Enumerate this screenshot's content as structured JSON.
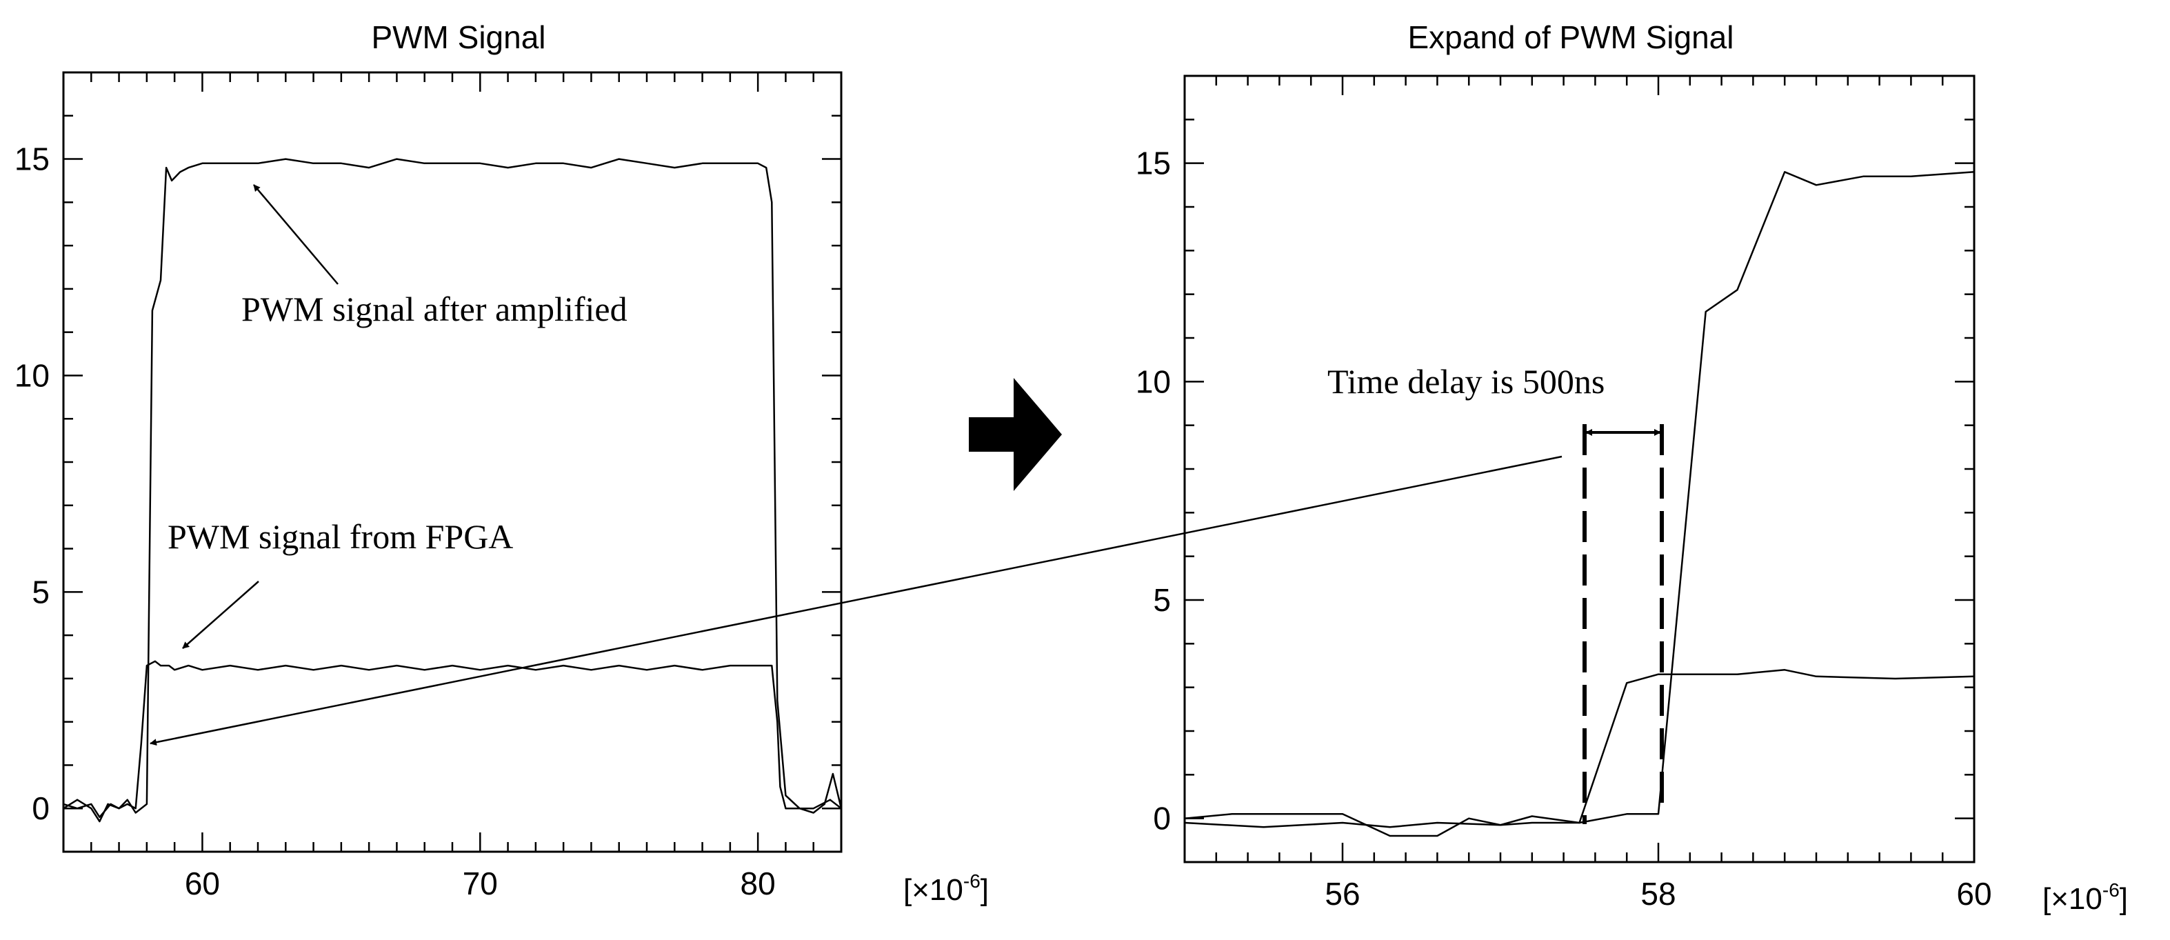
{
  "chart_data": [
    {
      "type": "line",
      "title": "PWM Signal",
      "x_unit_label": "[×10",
      "x_unit_exp": "-6",
      "x_unit_close": "]",
      "xlim": [
        55,
        83
      ],
      "ylim": [
        -1,
        17
      ],
      "xticks": [
        60,
        70,
        80
      ],
      "yticks": [
        0,
        5,
        10,
        15
      ],
      "grid": false,
      "series": [
        {
          "x": [
            55,
            55.5,
            56,
            56.3,
            56.7,
            57,
            57.3,
            57.6,
            57.8,
            58.0,
            58.3,
            58.5,
            58.8,
            59.0,
            59.5,
            60,
            61,
            62,
            63,
            64,
            65,
            66,
            67,
            68,
            69,
            70,
            71,
            72,
            73,
            74,
            75,
            76,
            77,
            78,
            79,
            80,
            80.3,
            80.5,
            80.7,
            80.8,
            81,
            82,
            82.6,
            83
          ],
          "y": [
            0.1,
            0.0,
            0.1,
            -0.2,
            0.1,
            0.0,
            0.1,
            0.0,
            1.5,
            3.3,
            3.4,
            3.3,
            3.3,
            3.2,
            3.3,
            3.2,
            3.3,
            3.2,
            3.3,
            3.2,
            3.3,
            3.2,
            3.3,
            3.2,
            3.3,
            3.2,
            3.3,
            3.2,
            3.3,
            3.2,
            3.3,
            3.2,
            3.3,
            3.2,
            3.3,
            3.3,
            3.3,
            3.3,
            2.0,
            0.5,
            0.0,
            0.0,
            0.2,
            0.0
          ]
        },
        {
          "x": [
            55,
            55.5,
            56,
            56.3,
            56.6,
            57,
            57.3,
            57.6,
            58.0,
            58.2,
            58.5,
            58.7,
            58.9,
            59.2,
            59.5,
            60,
            61,
            62,
            63,
            64,
            65,
            66,
            67,
            68,
            69,
            70,
            71,
            72,
            73,
            74,
            75,
            76,
            77,
            78,
            79,
            80,
            80.3,
            80.5,
            80.7,
            81,
            81.5,
            82,
            82.4,
            82.7,
            83
          ],
          "y": [
            0.0,
            0.2,
            0.0,
            -0.3,
            0.1,
            0.0,
            0.2,
            -0.1,
            0.1,
            11.5,
            12.2,
            14.8,
            14.5,
            14.7,
            14.8,
            14.9,
            14.9,
            14.9,
            15.0,
            14.9,
            14.9,
            14.8,
            15.0,
            14.9,
            14.9,
            14.9,
            14.8,
            14.9,
            14.9,
            14.8,
            15.0,
            14.9,
            14.8,
            14.9,
            14.9,
            14.9,
            14.8,
            14.0,
            2.5,
            0.3,
            0.0,
            -0.1,
            0.1,
            0.8,
            0.0
          ]
        }
      ],
      "annotations": [
        "PWM signal after amplified",
        "PWM signal from FPGA"
      ]
    },
    {
      "type": "line",
      "title": "Expand of PWM Signal",
      "x_unit_label": "[×10",
      "x_unit_exp": "-6",
      "x_unit_close": "]",
      "xlim": [
        55,
        60
      ],
      "ylim": [
        -1,
        17
      ],
      "xticks": [
        56,
        58,
        60
      ],
      "yticks": [
        0,
        5,
        10,
        15
      ],
      "grid": false,
      "series": [
        {
          "x": [
            55,
            55.5,
            56,
            56.3,
            56.6,
            57,
            57.2,
            57.5,
            57.8,
            58.0,
            58.5,
            58.8,
            59.0,
            59.5,
            60
          ],
          "y": [
            -0.1,
            -0.2,
            -0.1,
            -0.2,
            -0.1,
            -0.15,
            -0.1,
            -0.1,
            3.1,
            3.3,
            3.3,
            3.4,
            3.25,
            3.2,
            3.25
          ]
        },
        {
          "x": [
            55,
            55.3,
            55.6,
            56,
            56.3,
            56.6,
            56.8,
            57,
            57.2,
            57.5,
            57.8,
            58.0,
            58.3,
            58.5,
            58.8,
            59.0,
            59.3,
            59.6,
            60
          ],
          "y": [
            0.0,
            0.1,
            0.1,
            0.1,
            -0.4,
            -0.4,
            0.0,
            -0.15,
            0.05,
            -0.1,
            0.1,
            0.1,
            11.6,
            12.1,
            14.8,
            14.5,
            14.7,
            14.7,
            14.8
          ]
        }
      ],
      "annotations": [
        "Time delay is 500ns"
      ]
    }
  ],
  "arrow_icon": "right-arrow-icon"
}
